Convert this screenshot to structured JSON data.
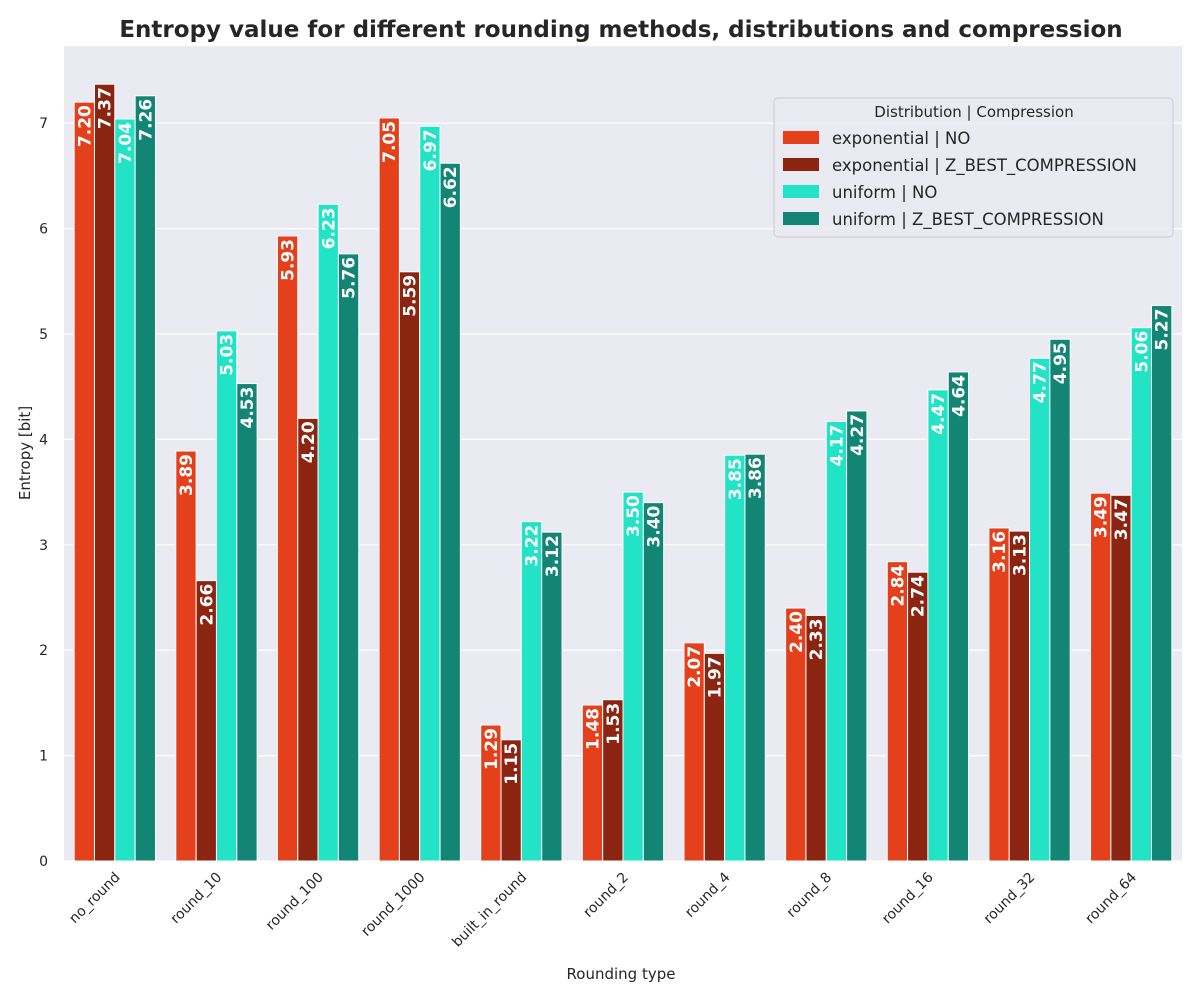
{
  "chart_data": {
    "type": "bar",
    "title": "Entropy value for different rounding methods, distributions and compression",
    "xlabel": "Rounding type",
    "ylabel": "Entropy [bit]",
    "ylim": [
      0,
      7.8
    ],
    "yticks": [
      0,
      1,
      2,
      3,
      4,
      5,
      6,
      7
    ],
    "grid": true,
    "legend": {
      "title": "Distribution | Compression",
      "placement": "top-right"
    },
    "categories": [
      "no_round",
      "round_10",
      "round_100",
      "round_1000",
      "built_in_round",
      "round_2",
      "round_4",
      "round_8",
      "round_16",
      "round_32",
      "round_64"
    ],
    "series": [
      {
        "name": "exponential | NO",
        "color": "#e5401c",
        "values": [
          7.2,
          3.89,
          5.93,
          7.05,
          1.29,
          1.48,
          2.07,
          2.4,
          2.84,
          3.16,
          3.49
        ]
      },
      {
        "name": "exponential | Z_BEST_COMPRESSION",
        "color": "#8b2410",
        "values": [
          7.37,
          2.66,
          4.2,
          5.59,
          1.15,
          1.53,
          1.97,
          2.33,
          2.74,
          3.13,
          3.47
        ]
      },
      {
        "name": "uniform | NO",
        "color": "#22e3c6",
        "values": [
          7.04,
          5.03,
          6.23,
          6.97,
          3.22,
          3.5,
          3.85,
          4.17,
          4.47,
          4.77,
          5.06
        ]
      },
      {
        "name": "uniform | Z_BEST_COMPRESSION",
        "color": "#138574",
        "values": [
          7.26,
          4.53,
          5.76,
          6.62,
          3.12,
          3.4,
          3.86,
          4.27,
          4.64,
          4.95,
          5.27
        ]
      }
    ]
  }
}
